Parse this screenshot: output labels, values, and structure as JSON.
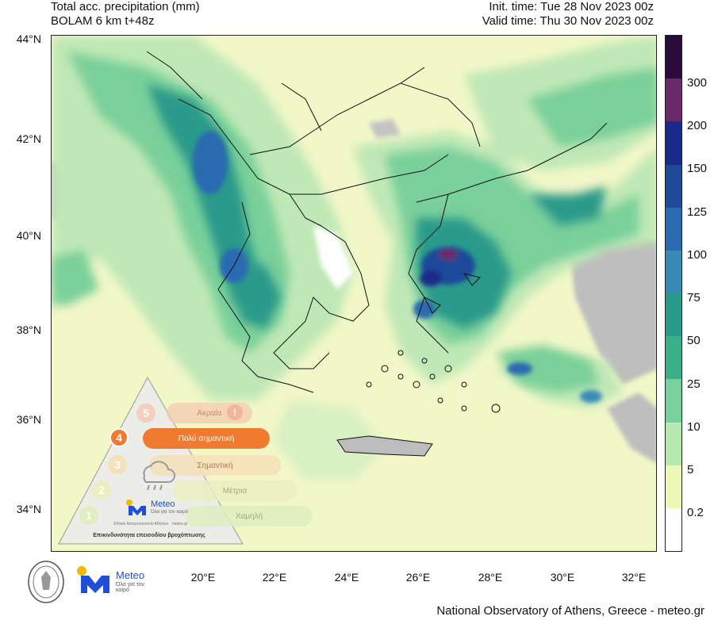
{
  "header": {
    "title_line1": "Total acc. precipitation (mm)",
    "title_line2": "BOLAM 6 km t+48z",
    "init_time": "Init. time: Tue 28 Nov 2023 00z",
    "valid_time": "Valid time: Thu 30 Nov 2023 00z"
  },
  "axes": {
    "lat_labels": [
      "44°N",
      "42°N",
      "40°N",
      "38°N",
      "36°N",
      "34°N"
    ],
    "lon_labels": [
      "20°E",
      "22°E",
      "24°E",
      "26°E",
      "28°E",
      "30°E",
      "32°E"
    ]
  },
  "colorbar": {
    "labels": [
      "300",
      "200",
      "150",
      "125",
      "100",
      "75",
      "50",
      "25",
      "10",
      "5",
      "0.2"
    ],
    "colors": [
      "#2a0a3a",
      "#6a2a6a",
      "#1a2a8a",
      "#1e4a9a",
      "#2a6ab0",
      "#3a8ab8",
      "#2a9a8a",
      "#3ab08a",
      "#7ad09a",
      "#b6e8b0",
      "#eef6b8",
      "#ffffff"
    ]
  },
  "warning_scale": {
    "levels": [
      {
        "num": "5",
        "label": "Ακραία"
      },
      {
        "num": "4",
        "label": "Πολύ σημαντική"
      },
      {
        "num": "3",
        "label": "Σημαντική"
      },
      {
        "num": "2",
        "label": "Μέτρια"
      },
      {
        "num": "1",
        "label": "Χαμηλή"
      }
    ],
    "logo_text": "Meteo",
    "logo_sub": "Όλα για τον καιρό",
    "logo_small": "Εθνικό Αστεροσκοπείο Αθηνών · meteo.gr",
    "caption": "Επικινδυνότητα επεισοδίου βροχόπτωσης"
  },
  "bottom_logo": {
    "name": "Meteo",
    "sub": "Όλα για τον καιρό"
  },
  "credit": "National Observatory of Athens, Greece - meteo.gr"
}
